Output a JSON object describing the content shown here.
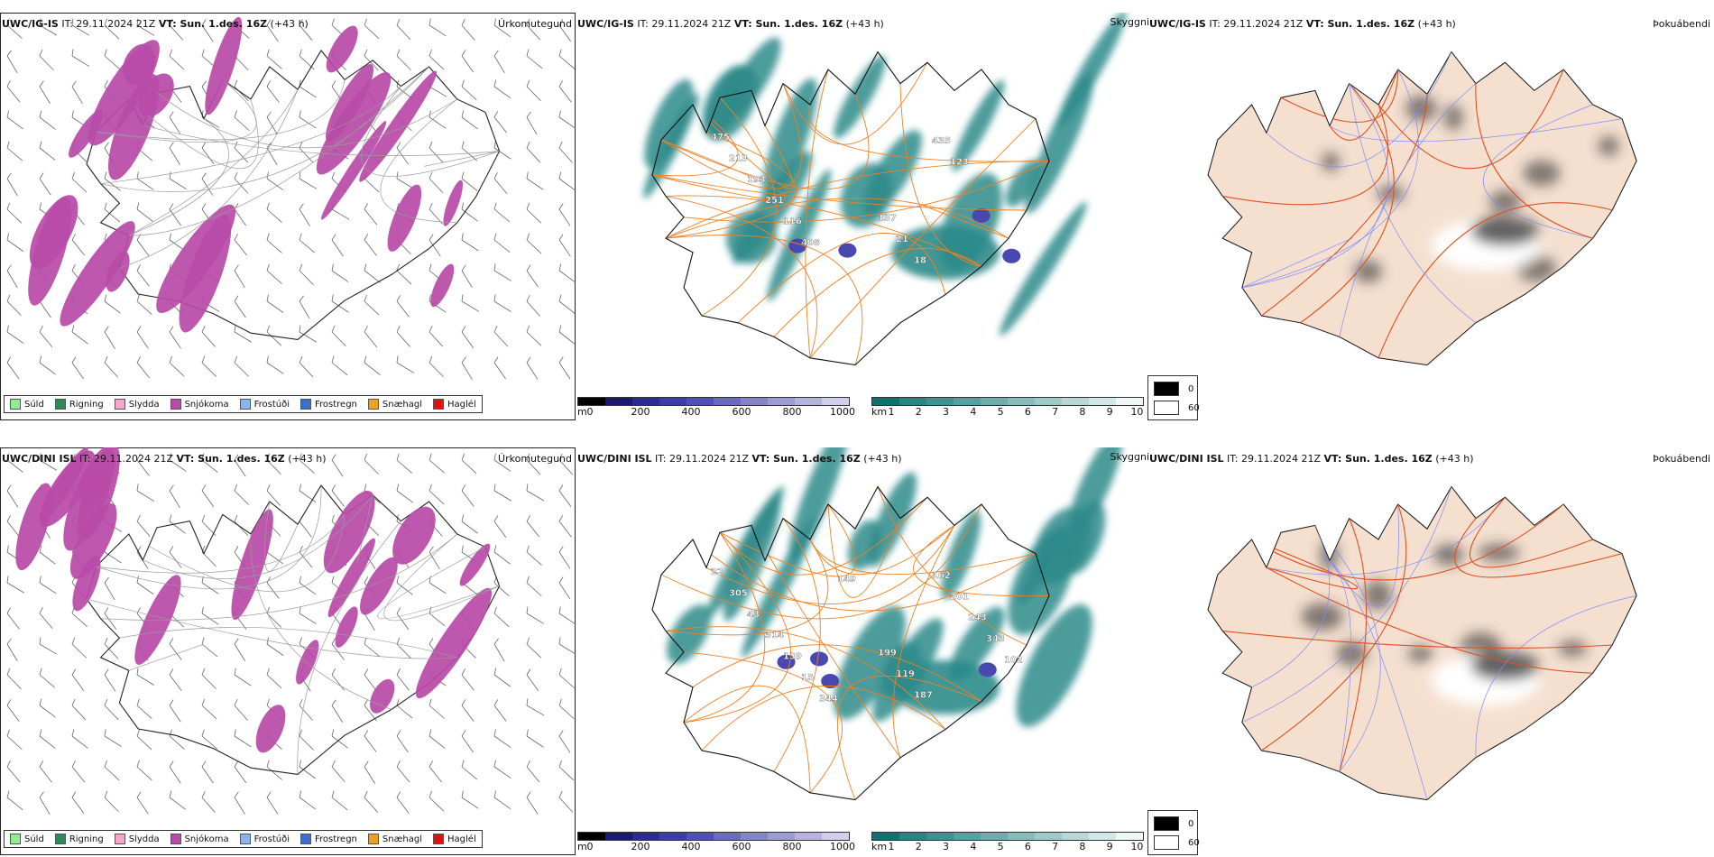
{
  "rows": [
    {
      "model": "UWC/IG-IS",
      "it_label": "IT: 29.11.2024 21Z",
      "vt_label": "VT: Sun. 1.des. 16Z",
      "lead": "(+43 h)",
      "precip_label": "Úrkomutegund",
      "vis_label": "Skyggni",
      "fog_label": "Þokuábendi",
      "ceiling_values": [
        "475",
        "137",
        "213",
        "21",
        "193",
        "18",
        "251",
        "435",
        "116",
        "123",
        "408"
      ]
    },
    {
      "model": "UWC/DINI ISL",
      "it_label": "IT: 29.11.2024 21Z",
      "vt_label": "VT: Sun. 1.des. 16Z",
      "lead": "(+43 h)",
      "precip_label": "Úrkomutegund",
      "vis_label": "Skyggni",
      "fog_label": "Þokuábendi",
      "ceiling_values": [
        "22",
        "199",
        "305",
        "119",
        "43",
        "187",
        "314",
        "162",
        "139",
        "201",
        "15",
        "243",
        "344",
        "343",
        "149",
        "102"
      ]
    }
  ],
  "precip_legend": [
    {
      "label": "Súld",
      "color": "#90ee90"
    },
    {
      "label": "Rigning",
      "color": "#2e8b57"
    },
    {
      "label": "Slydda",
      "color": "#f4a6d0"
    },
    {
      "label": "Snjókoma",
      "color": "#b84aa8"
    },
    {
      "label": "Frostúði",
      "color": "#8ab4f0"
    },
    {
      "label": "Frostregn",
      "color": "#3a6fd0"
    },
    {
      "label": "Snæhagl",
      "color": "#f0a020"
    },
    {
      "label": "Haglél",
      "color": "#e01010"
    }
  ],
  "ceiling_scale": {
    "unit": "m",
    "ticks": [
      "0",
      "200",
      "400",
      "600",
      "800",
      "1000"
    ],
    "colors": [
      "#000000",
      "#1a1a6e",
      "#2c2c8f",
      "#3c3ca8",
      "#5050b4",
      "#6a6abf",
      "#8484c8",
      "#9c9cd2",
      "#b4b4dc",
      "#d0d0ec"
    ]
  },
  "vis_scale": {
    "unit": "km",
    "ticks": [
      "1",
      "2",
      "3",
      "4",
      "5",
      "6",
      "7",
      "8",
      "9",
      "10"
    ],
    "colors": [
      "#117070",
      "#2a8484",
      "#3f9090",
      "#55a0a0",
      "#6dadad",
      "#86bcbc",
      "#9ecaca",
      "#b8d8d8",
      "#d2e8e8",
      "#eef6f6"
    ]
  },
  "fog_scale": {
    "ticks": [
      "0",
      "60"
    ],
    "colors": [
      "#000000",
      "#ffffff"
    ]
  },
  "colors": {
    "snow": "#b84aa8",
    "visibility": "#2e8b8b",
    "ceiling": "#4848b0",
    "roads": "#f08020",
    "land_fog": "#f5e0d0",
    "fog_roads": "#e05020",
    "rivers": "#7a8cff"
  }
}
